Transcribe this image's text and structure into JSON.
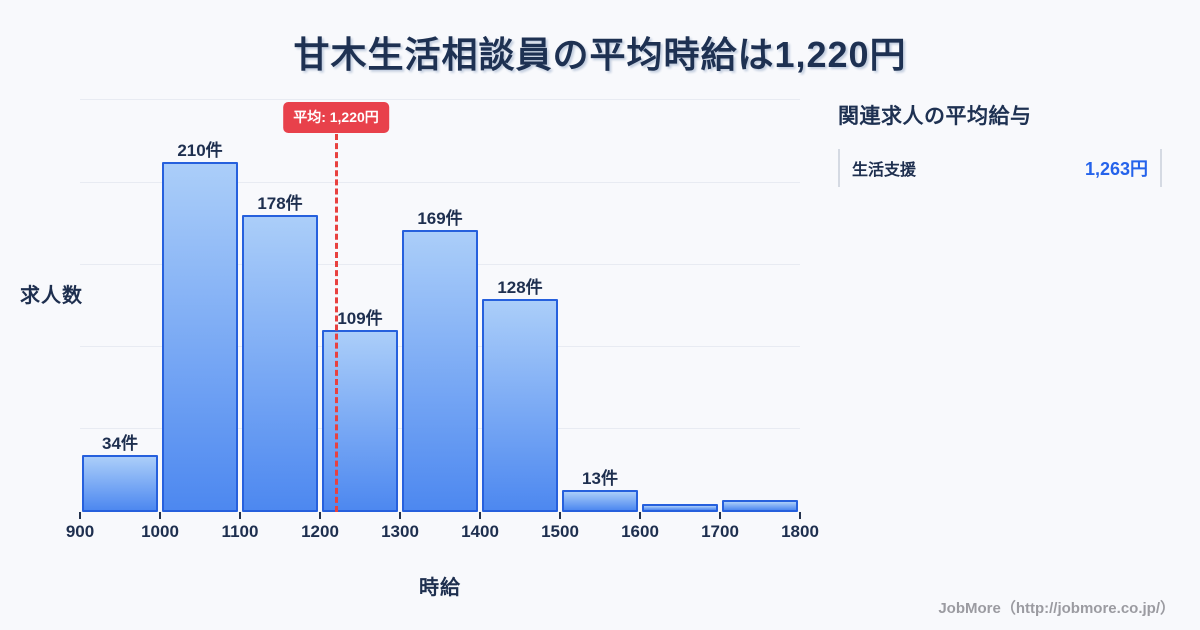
{
  "title": "甘木生活相談員の平均時給は1,220円",
  "chart_data": {
    "type": "bar",
    "title": "甘木生活相談員の平均時給は1,220円",
    "xlabel": "時給",
    "ylabel": "求人数",
    "bin_edges": [
      900,
      1000,
      1100,
      1200,
      1300,
      1400,
      1500,
      1600,
      1700,
      1800
    ],
    "values": [
      34,
      210,
      178,
      109,
      169,
      128,
      13,
      5,
      7
    ],
    "bar_labels": [
      "34件",
      "210件",
      "178件",
      "109件",
      "169件",
      "128件",
      "13件",
      "",
      ""
    ],
    "x_ticks": [
      "900",
      "1000",
      "1100",
      "1200",
      "1300",
      "1400",
      "1500",
      "1600",
      "1700",
      "1800"
    ],
    "ylim": [
      0,
      250
    ],
    "grid": true,
    "legend": null,
    "average_line": {
      "x": 1220,
      "label": "平均: 1,220円"
    },
    "colors": {
      "bar_fill_top": "#abcef9",
      "bar_fill_bottom": "#4d88f0",
      "bar_border": "#2660dd",
      "average_red": "#e8414b",
      "text_navy": "#1e2f4f"
    }
  },
  "side_panel": {
    "heading": "関連求人の平均給与",
    "rows": [
      {
        "label": "生活支援",
        "value": "1,263円"
      }
    ]
  },
  "footer": {
    "credit": "JobMore（http://jobmore.co.jp/）"
  }
}
